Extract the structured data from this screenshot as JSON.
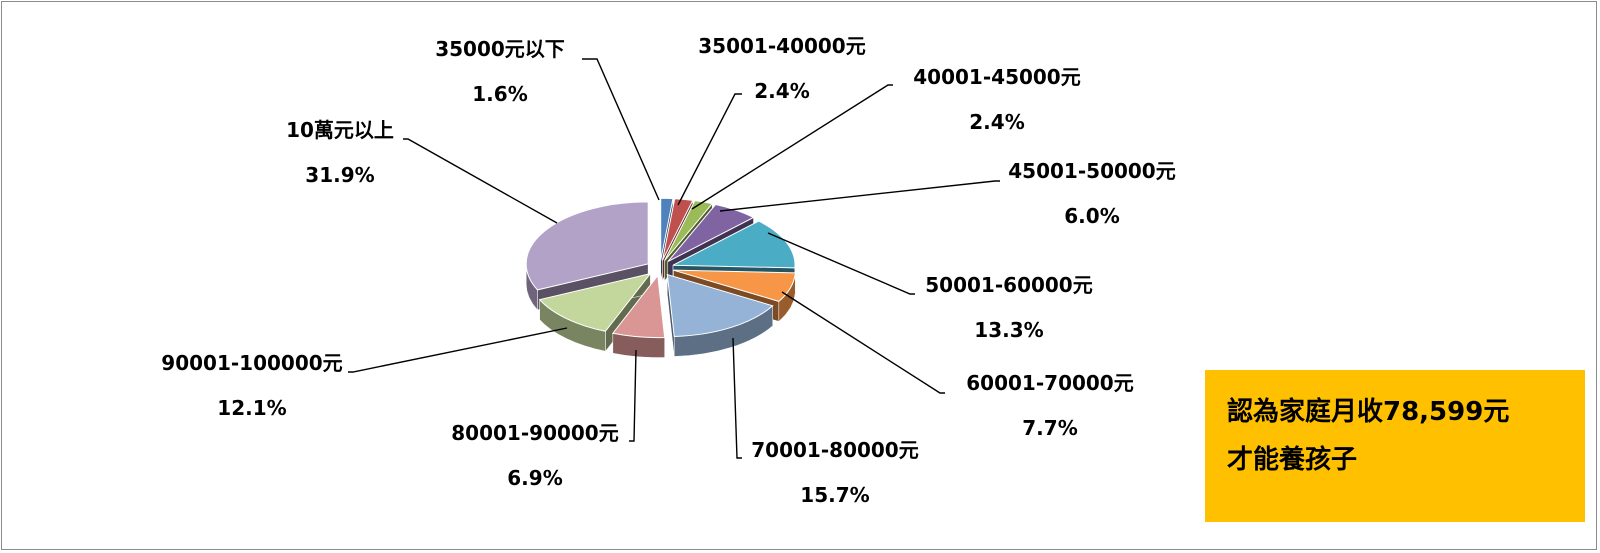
{
  "chart_data": {
    "type": "pie",
    "slices": [
      {
        "label": "35000元以下",
        "value": 1.6,
        "display": "1.6%",
        "color": "#4f81bd"
      },
      {
        "label": "35001-40000元",
        "value": 2.4,
        "display": "2.4%",
        "color": "#c0504d"
      },
      {
        "label": "40001-45000元",
        "value": 2.4,
        "display": "2.4%",
        "color": "#9bbb59"
      },
      {
        "label": "45001-50000元",
        "value": 6.0,
        "display": "6.0%",
        "color": "#8064a2"
      },
      {
        "label": "50001-60000元",
        "value": 13.3,
        "display": "13.3%",
        "color": "#4bacc6"
      },
      {
        "label": "60001-70000元",
        "value": 7.7,
        "display": "7.7%",
        "color": "#f79646"
      },
      {
        "label": "70001-80000元",
        "value": 15.7,
        "display": "15.7%",
        "color": "#95b3d7"
      },
      {
        "label": "80001-90000元",
        "value": 6.9,
        "display": "6.9%",
        "color": "#d99694"
      },
      {
        "label": "90001-100000元",
        "value": 12.1,
        "display": "12.1%",
        "color": "#c3d69b"
      },
      {
        "label": "10萬元以上",
        "value": 31.9,
        "display": "31.9%",
        "color": "#b3a2c7"
      }
    ]
  },
  "callout": {
    "line1": "認為家庭月收78,599元",
    "line2": "才能養孩子"
  }
}
